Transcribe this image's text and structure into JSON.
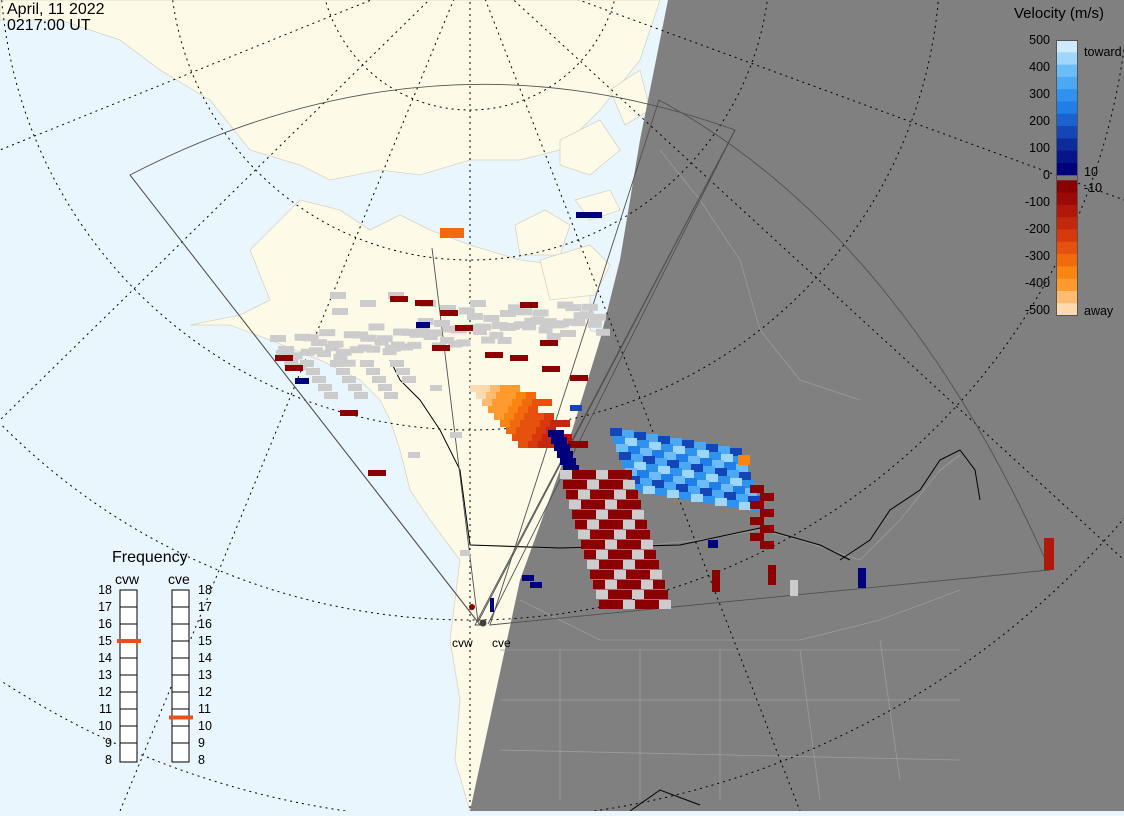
{
  "header": {
    "date": "April, 11 2022",
    "time": "0217:00 UT"
  },
  "colorbar": {
    "title": "Velocity (m/s)",
    "ticks": [
      "500",
      "400",
      "300",
      "200",
      "100",
      "0",
      "-100",
      "-200",
      "-300",
      "-400",
      "-500"
    ],
    "near_zero_labels": [
      "10",
      "-10"
    ],
    "end_labels": [
      "toward",
      "away"
    ],
    "colors": [
      "#ffd9b0",
      "#ff9a2e",
      "#f26a0d",
      "#d8390c",
      "#b2170b",
      "#8b0000",
      "#7a7a7a",
      "#00007d",
      "#1446b8",
      "#1f7ee8",
      "#4aa9f2",
      "#9fd6fb"
    ]
  },
  "frequency": {
    "title": "Frequency",
    "radars": [
      "cvw",
      "cve"
    ],
    "scale": [
      "18",
      "17",
      "16",
      "15",
      "14",
      "13",
      "12",
      "11",
      "10",
      "9",
      "8"
    ],
    "cvw_mhz": 15,
    "cve_mhz": 10.5,
    "marker_color": "#e8501e"
  },
  "map": {
    "radar_sites": [
      "cvw",
      "cve"
    ],
    "ocean_color": "#eaf6fd",
    "land_color": "#fdfbe8",
    "night_color": "#808080",
    "scatter_color": "#cccccc"
  }
}
